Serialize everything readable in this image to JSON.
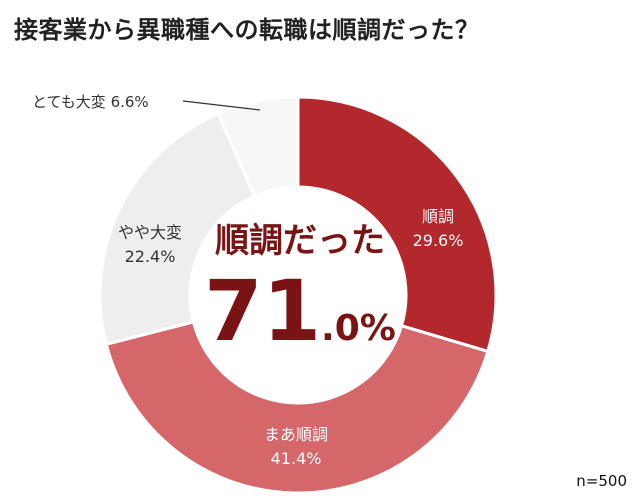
{
  "title": "接客業から異職種への転職は順調だった？",
  "sample_size": "n=500",
  "center": {
    "headline": "順調だった",
    "big_number": "71",
    "small_number": ".0%"
  },
  "colors": {
    "center_text": "#7a1414",
    "leader_line": "#333333",
    "segment_borders": "#ffffff"
  },
  "chart_data": {
    "type": "pie",
    "style": "donut",
    "title": "接客業から異職種への転職は順調だった？",
    "slices": [
      {
        "label": "順調",
        "value": 29.6,
        "display": "29.6%",
        "color": "#b3282d",
        "text_color": "#ffffff"
      },
      {
        "label": "まあ順調",
        "value": 41.4,
        "display": "41.4%",
        "color": "#d5676b",
        "text_color": "#ffffff"
      },
      {
        "label": "やや大変",
        "value": 22.4,
        "display": "22.4%",
        "color": "#eeeeef",
        "text_color": "#333333"
      },
      {
        "label": "とても大変",
        "value": 6.6,
        "display": "6.6%",
        "color": "#f7f7f7",
        "text_color": "#333333"
      }
    ],
    "start": "12 o'clock",
    "direction": "clockwise"
  }
}
